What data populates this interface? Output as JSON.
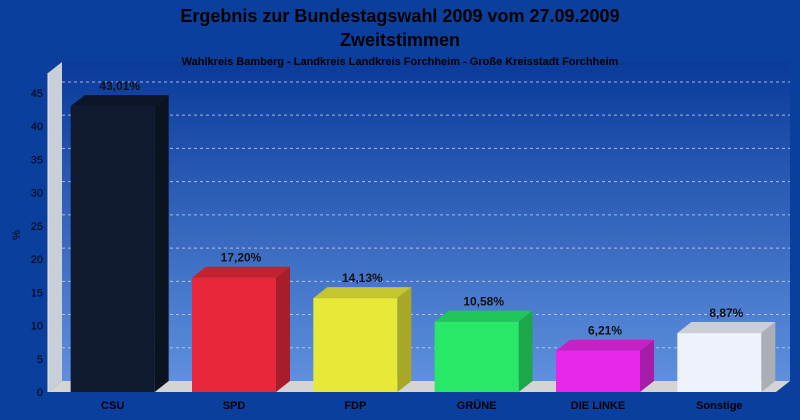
{
  "chart_data": {
    "type": "bar",
    "title": "Ergebnis zur Bundestagswahl 2009 vom 27.09.2009",
    "title_line2": "Zweitstimmen",
    "subtitle": "Wahlkreis Bamberg - Landkreis Landkreis Forchheim - Große Kreisstadt Forchheim",
    "xlabel": "",
    "ylabel": "%",
    "ylim": [
      0,
      48
    ],
    "yticks": [
      0,
      5,
      10,
      15,
      20,
      25,
      30,
      35,
      40,
      45
    ],
    "grid": true,
    "categories": [
      "CSU",
      "SPD",
      "FDP",
      "GRÜNE",
      "DIE LINKE",
      "Sonstige"
    ],
    "values": [
      43.01,
      17.2,
      14.13,
      10.58,
      6.21,
      8.87
    ],
    "value_labels": [
      "43,01%",
      "17,20%",
      "14,13%",
      "10,58%",
      "6,21%",
      "8,87%"
    ],
    "colors": [
      "#0f1a2e",
      "#e8283a",
      "#e8e838",
      "#28e868",
      "#e828e8",
      "#eef2fb"
    ],
    "background": "#0a3f9e"
  }
}
